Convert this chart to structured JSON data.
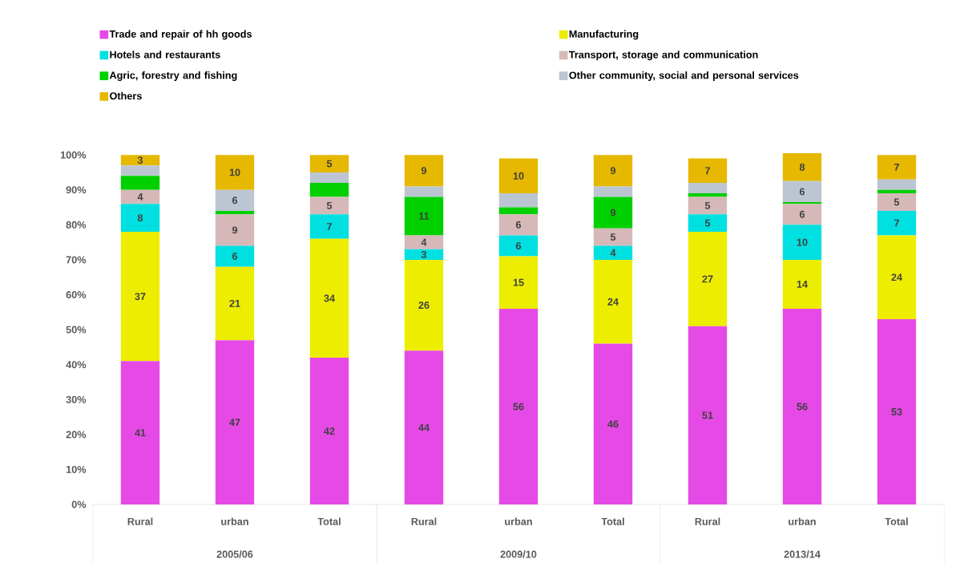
{
  "chart_data": {
    "type": "bar",
    "stacked": true,
    "legend": "top",
    "categories": [
      "Rural",
      "urban",
      "Total",
      "Rural",
      "urban",
      "Total",
      "Rural",
      "urban",
      "Total"
    ],
    "annotations": [
      "2005/06",
      "2009/10",
      "2013/14"
    ],
    "ylim": [
      0,
      100.5
    ],
    "yticks": [
      {
        "value": 0,
        "label": "0%"
      },
      {
        "value": 10,
        "label": "10%"
      },
      {
        "value": 20,
        "label": "20%"
      },
      {
        "value": 30,
        "label": "30%"
      },
      {
        "value": 40,
        "label": "40%"
      },
      {
        "value": 50,
        "label": "50%"
      },
      {
        "value": 60,
        "label": "60%"
      },
      {
        "value": 70,
        "label": "70%"
      },
      {
        "value": 80,
        "label": "80%"
      },
      {
        "value": 90,
        "label": "90%"
      },
      {
        "value": 100,
        "label": "100%"
      }
    ],
    "series": [
      {
        "name": "Trade and repair of hh goods",
        "color": "#e64ae6",
        "values": [
          41,
          47,
          42,
          44,
          56,
          46,
          51,
          56,
          53
        ],
        "value_labels": [
          "41",
          "47",
          "42",
          "44",
          "56",
          "46",
          "51",
          "56",
          "53"
        ]
      },
      {
        "name": "Manufacturing",
        "color": "#eded00",
        "values": [
          37,
          21,
          34,
          26,
          15,
          24,
          27,
          14,
          24
        ],
        "value_labels": [
          "37",
          "21",
          "34",
          "26",
          "15",
          "24",
          "27",
          "14",
          "24"
        ]
      },
      {
        "name": "Hotels and restaurants",
        "color": "#00e0e0",
        "values": [
          8,
          6,
          7,
          3,
          6,
          4,
          5,
          10,
          7
        ],
        "value_labels": [
          "8",
          "6",
          "7",
          "3",
          "6",
          "4",
          "5",
          "10",
          "7"
        ]
      },
      {
        "name": "Transport, storage and communication",
        "color": "#d6b8b8",
        "values": [
          4,
          9,
          5,
          4,
          6,
          5,
          5,
          6,
          5
        ],
        "value_labels": [
          "4",
          "9",
          "5",
          "4",
          "6",
          "5",
          "5",
          "6",
          "5"
        ]
      },
      {
        "name": "Agric, forestry and fishing",
        "color": "#00d000",
        "values": [
          4,
          1,
          4,
          11,
          2,
          9,
          1,
          0.5,
          1
        ],
        "value_labels": [
          null,
          null,
          null,
          "11",
          null,
          "9",
          null,
          null,
          null
        ]
      },
      {
        "name": "Other community, social and personal services",
        "color": "#bcc6d2",
        "values": [
          3,
          6,
          3,
          3,
          4,
          3,
          3,
          6,
          3
        ],
        "value_labels": [
          null,
          "6",
          null,
          null,
          null,
          null,
          null,
          "6",
          null
        ]
      },
      {
        "name": "Others",
        "color": "#e6b800",
        "values": [
          3,
          10,
          5,
          9,
          10,
          9,
          7,
          8,
          7
        ],
        "value_labels": [
          "3",
          "10",
          "5",
          "9",
          "10",
          "9",
          "7",
          "8",
          "7"
        ]
      }
    ]
  }
}
